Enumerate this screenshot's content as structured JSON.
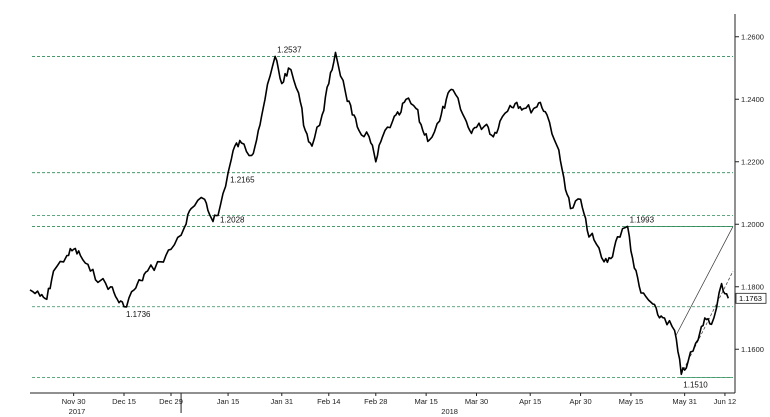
{
  "chart_data": {
    "type": "line",
    "title": "",
    "xlabel": "",
    "ylabel": "",
    "ylim": [
      1.146,
      1.266
    ],
    "y_ticks": [
      "1.2600",
      "1.2400",
      "1.2200",
      "1.2000",
      "1.1800",
      "1.1600"
    ],
    "x_ticks": [
      "Nov 30",
      "Dec 15",
      "Dec 29",
      "Jan 15",
      "Jan 31",
      "Feb 14",
      "Feb 28",
      "Mar 15",
      "Mar 30",
      "Apr 15",
      "Apr 30",
      "May 15",
      "May 31",
      "Jun 12"
    ],
    "x_tick_dates": [
      "2017-11-30",
      "2017-12-15",
      "2017-12-29",
      "2018-01-15",
      "2018-01-31",
      "2018-02-14",
      "2018-02-28",
      "2018-03-15",
      "2018-03-30",
      "2018-04-15",
      "2018-04-30",
      "2018-05-15",
      "2018-05-31",
      "2018-06-12"
    ],
    "years": [
      "2017",
      "2018"
    ],
    "last_price": "1.1763",
    "grid": false,
    "series": [
      {
        "x": [
          "2017-11-17",
          "2017-11-20",
          "2017-11-22",
          "2017-11-24",
          "2017-11-28",
          "2017-11-30",
          "2017-12-02",
          "2017-12-05",
          "2017-12-08",
          "2017-12-11",
          "2017-12-13",
          "2017-12-15",
          "2017-12-18",
          "2017-12-20",
          "2017-12-22",
          "2017-12-26",
          "2017-12-29",
          "2018-01-02",
          "2018-01-04",
          "2018-01-08",
          "2018-01-10",
          "2018-01-12",
          "2018-01-15",
          "2018-01-17",
          "2018-01-19",
          "2018-01-22",
          "2018-01-24",
          "2018-01-26",
          "2018-01-29",
          "2018-01-31",
          "2018-02-02",
          "2018-02-05",
          "2018-02-07",
          "2018-02-09",
          "2018-02-12",
          "2018-02-14",
          "2018-02-16",
          "2018-02-19",
          "2018-02-21",
          "2018-02-23",
          "2018-02-26",
          "2018-02-28",
          "2018-03-02",
          "2018-03-05",
          "2018-03-07",
          "2018-03-09",
          "2018-03-12",
          "2018-03-14",
          "2018-03-16",
          "2018-03-19",
          "2018-03-21",
          "2018-03-23",
          "2018-03-26",
          "2018-03-28",
          "2018-03-30",
          "2018-04-02",
          "2018-04-04",
          "2018-04-06",
          "2018-04-09",
          "2018-04-11",
          "2018-04-13",
          "2018-04-16",
          "2018-04-18",
          "2018-04-20",
          "2018-04-23",
          "2018-04-25",
          "2018-04-27",
          "2018-04-30",
          "2018-05-02",
          "2018-05-04",
          "2018-05-07",
          "2018-05-09",
          "2018-05-11",
          "2018-05-14",
          "2018-05-16",
          "2018-05-18",
          "2018-05-21",
          "2018-05-23",
          "2018-05-25",
          "2018-05-28",
          "2018-05-30",
          "2018-06-01",
          "2018-06-04",
          "2018-06-06",
          "2018-06-08",
          "2018-06-11",
          "2018-06-13"
        ],
        "y": [
          1.179,
          1.177,
          1.176,
          1.185,
          1.19,
          1.192,
          1.19,
          1.185,
          1.182,
          1.18,
          1.176,
          1.1736,
          1.179,
          1.182,
          1.185,
          1.188,
          1.192,
          1.199,
          1.205,
          1.208,
          1.202,
          1.2028,
          1.2165,
          1.225,
          1.226,
          1.222,
          1.23,
          1.24,
          1.2537,
          1.245,
          1.25,
          1.242,
          1.23,
          1.225,
          1.235,
          1.245,
          1.255,
          1.242,
          1.235,
          1.23,
          1.228,
          1.22,
          1.228,
          1.233,
          1.235,
          1.24,
          1.237,
          1.23,
          1.227,
          1.233,
          1.24,
          1.243,
          1.235,
          1.23,
          1.231,
          1.232,
          1.228,
          1.233,
          1.238,
          1.239,
          1.237,
          1.237,
          1.239,
          1.235,
          1.225,
          1.215,
          1.205,
          1.208,
          1.198,
          1.195,
          1.188,
          1.189,
          1.196,
          1.1993,
          1.186,
          1.178,
          1.175,
          1.171,
          1.17,
          1.166,
          1.152,
          1.156,
          1.163,
          1.17,
          1.168,
          1.181,
          1.1763
        ]
      }
    ],
    "levels": [
      {
        "value": 1.2537,
        "label": "1.2537"
      },
      {
        "value": 1.2165,
        "label": "1.2165"
      },
      {
        "value": 1.2028,
        "label": "1.2028"
      },
      {
        "value": 1.1993,
        "label": "1.1993"
      },
      {
        "value": 1.1736,
        "label": "1.1736"
      },
      {
        "value": 1.151,
        "label": "1.1510"
      }
    ]
  }
}
